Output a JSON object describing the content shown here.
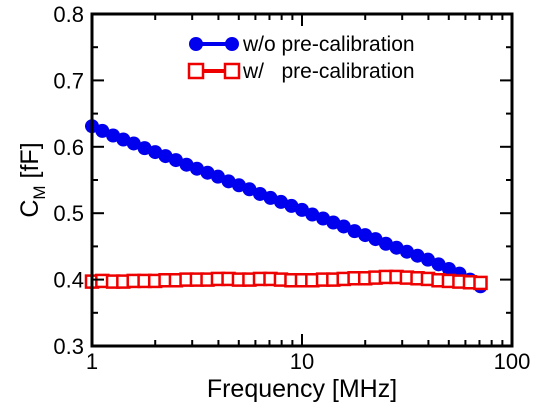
{
  "chart_data": {
    "type": "line",
    "xscale": "log",
    "xlim": [
      1,
      100
    ],
    "ylim": [
      0.3,
      0.8
    ],
    "xticks": [
      1,
      10,
      100
    ],
    "xtick_labels": [
      "1",
      "10",
      "100"
    ],
    "yticks": [
      0.3,
      0.4,
      0.5,
      0.6,
      0.7,
      0.8
    ],
    "ytick_labels": [
      "0.3",
      "0.4",
      "0.5",
      "0.6",
      "0.7",
      "0.8"
    ],
    "xlabel": "Frequency [MHz]",
    "ylabel_main": "C",
    "ylabel_sub": "M",
    "ylabel_unit": " [fF]",
    "grid": false,
    "legend_position": "top-right",
    "x": [
      1.0,
      1.12,
      1.26,
      1.41,
      1.58,
      1.78,
      2.0,
      2.24,
      2.51,
      2.82,
      3.16,
      3.55,
      3.98,
      4.47,
      5.01,
      5.62,
      6.31,
      7.08,
      7.94,
      8.91,
      10.0,
      11.2,
      12.6,
      14.1,
      15.8,
      17.8,
      20.0,
      22.4,
      25.1,
      28.2,
      31.6,
      35.5,
      39.8,
      44.7,
      50.1,
      56.2,
      63.1,
      70.8
    ],
    "series": [
      {
        "name": "w/o pre-calibration",
        "color": "#0000ee",
        "marker": "filled-circle",
        "values": [
          0.631,
          0.624,
          0.617,
          0.611,
          0.605,
          0.598,
          0.592,
          0.586,
          0.58,
          0.573,
          0.567,
          0.561,
          0.555,
          0.548,
          0.542,
          0.536,
          0.529,
          0.523,
          0.517,
          0.511,
          0.505,
          0.498,
          0.492,
          0.486,
          0.48,
          0.473,
          0.467,
          0.461,
          0.454,
          0.448,
          0.442,
          0.436,
          0.43,
          0.423,
          0.416,
          0.409,
          0.4,
          0.39
        ]
      },
      {
        "name": "w/   pre-calibration",
        "color": "#ee0000",
        "marker": "open-square",
        "values": [
          0.397,
          0.398,
          0.397,
          0.397,
          0.398,
          0.398,
          0.398,
          0.399,
          0.399,
          0.4,
          0.4,
          0.4,
          0.401,
          0.401,
          0.4,
          0.4,
          0.401,
          0.401,
          0.4,
          0.399,
          0.399,
          0.399,
          0.4,
          0.4,
          0.401,
          0.402,
          0.402,
          0.403,
          0.404,
          0.404,
          0.403,
          0.402,
          0.401,
          0.399,
          0.398,
          0.397,
          0.396,
          0.395
        ]
      }
    ]
  }
}
